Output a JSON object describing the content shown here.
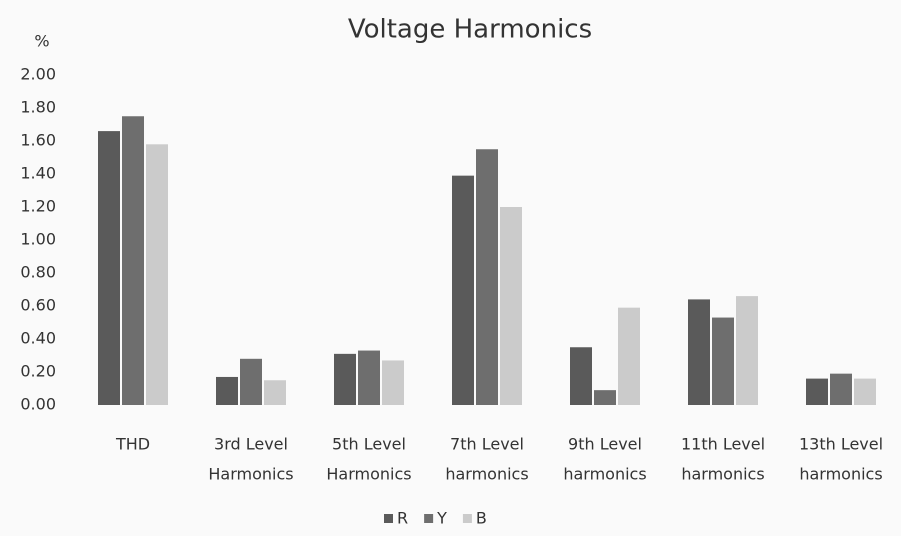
{
  "chart_data": {
    "type": "bar",
    "title": "Voltage Harmonics",
    "y_label": "%",
    "categories": [
      [
        "THD"
      ],
      [
        "3rd Level",
        "Harmonics"
      ],
      [
        "5th Level",
        "Harmonics"
      ],
      [
        "7th Level",
        "harmonics"
      ],
      [
        "9th Level",
        "harmonics"
      ],
      [
        "11th Level",
        "harmonics"
      ],
      [
        "13th Level",
        "harmonics"
      ]
    ],
    "series": [
      {
        "name": "R",
        "color": "#5a5a5a",
        "values": [
          1.66,
          0.17,
          0.31,
          1.39,
          0.35,
          0.64,
          0.16
        ]
      },
      {
        "name": "Y",
        "color": "#6e6e6e",
        "values": [
          1.75,
          0.28,
          0.33,
          1.55,
          0.09,
          0.53,
          0.19
        ]
      },
      {
        "name": "B",
        "color": "#cbcbcb",
        "values": [
          1.58,
          0.15,
          0.27,
          1.2,
          0.59,
          0.66,
          0.16
        ]
      }
    ],
    "ylim": [
      0,
      2
    ],
    "yticks": [
      {
        "value": 0,
        "label": "0.00"
      },
      {
        "value": 0.2,
        "label": "0.20"
      },
      {
        "value": 0.4,
        "label": "0.40"
      },
      {
        "value": 0.6,
        "label": "0.60"
      },
      {
        "value": 0.8,
        "label": "0.80"
      },
      {
        "value": 1,
        "label": "1.00"
      },
      {
        "value": 1.2,
        "label": "1.20"
      },
      {
        "value": 1.4,
        "label": "1.40"
      },
      {
        "value": 1.6,
        "label": "1.60"
      },
      {
        "value": 1.8,
        "label": "1.80"
      },
      {
        "value": 2,
        "label": "2.00"
      }
    ],
    "grid": false,
    "legend": "bottom"
  }
}
